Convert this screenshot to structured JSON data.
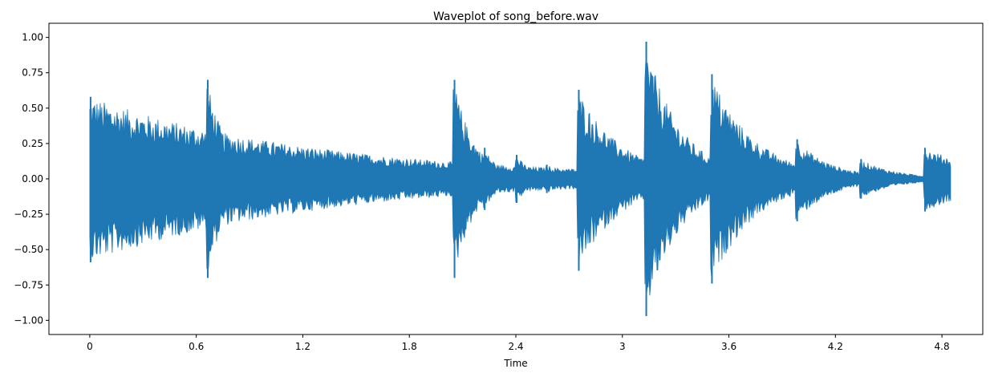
{
  "chart_data": {
    "type": "area",
    "title": "Waveplot of song_before.wav",
    "xlabel": "Time",
    "ylabel": "",
    "xlim": [
      -0.23,
      5.03
    ],
    "ylim": [
      -1.1,
      1.1
    ],
    "x_ticks": [
      0,
      0.6,
      1.2,
      1.8,
      2.4,
      3,
      3.6,
      4.2,
      4.8
    ],
    "x_tick_labels": [
      "0",
      "0.6",
      "1.2",
      "1.8",
      "2.4",
      "3",
      "3.6",
      "4.2",
      "4.8"
    ],
    "y_ticks": [
      1.0,
      0.75,
      0.5,
      0.25,
      0.0,
      -0.25,
      -0.5,
      -0.75,
      -1.0
    ],
    "y_tick_labels": [
      "1.00",
      "0.75",
      "0.50",
      "0.25",
      "0.00",
      "−0.25",
      "−0.50",
      "−0.75",
      "−1.00"
    ],
    "grid": false,
    "color": "#1f77b4",
    "duration": 4.85,
    "onsets": [
      {
        "t": 0.0,
        "amp_pos": 0.58,
        "amp_neg": 0.59,
        "decay": 1.3
      },
      {
        "t": 0.3,
        "amp_pos": 0.3,
        "amp_neg": 0.3,
        "decay": 0.35
      },
      {
        "t": 0.66,
        "amp_pos": 0.7,
        "amp_neg": 0.7,
        "decay": 0.12
      },
      {
        "t": 1.0,
        "amp_pos": 0.22,
        "amp_neg": 0.23,
        "decay": 0.05
      },
      {
        "t": 1.35,
        "amp_pos": 0.14,
        "amp_neg": 0.14,
        "decay": 0.08
      },
      {
        "t": 1.87,
        "amp_pos": 0.1,
        "amp_neg": 0.1,
        "decay": 0.15
      },
      {
        "t": 2.05,
        "amp_pos": 0.7,
        "amp_neg": 0.7,
        "decay": 0.12
      },
      {
        "t": 2.22,
        "amp_pos": 0.22,
        "amp_neg": 0.22,
        "decay": 0.1
      },
      {
        "t": 2.4,
        "amp_pos": 0.17,
        "amp_neg": 0.17,
        "decay": 0.1
      },
      {
        "t": 2.57,
        "amp_pos": 0.1,
        "amp_neg": 0.1,
        "decay": 0.2
      },
      {
        "t": 2.75,
        "amp_pos": 0.63,
        "amp_neg": 0.65,
        "decay": 0.25
      },
      {
        "t": 3.13,
        "amp_pos": 0.97,
        "amp_neg": 0.97,
        "decay": 0.2
      },
      {
        "t": 3.5,
        "amp_pos": 0.74,
        "amp_neg": 0.74,
        "decay": 0.25
      },
      {
        "t": 3.98,
        "amp_pos": 0.28,
        "amp_neg": 0.3,
        "decay": 0.2
      },
      {
        "t": 4.34,
        "amp_pos": 0.14,
        "amp_neg": 0.14,
        "decay": 0.2
      },
      {
        "t": 4.7,
        "amp_pos": 0.22,
        "amp_neg": 0.23,
        "decay": 0.4
      }
    ],
    "tail_amp": 0.1
  }
}
